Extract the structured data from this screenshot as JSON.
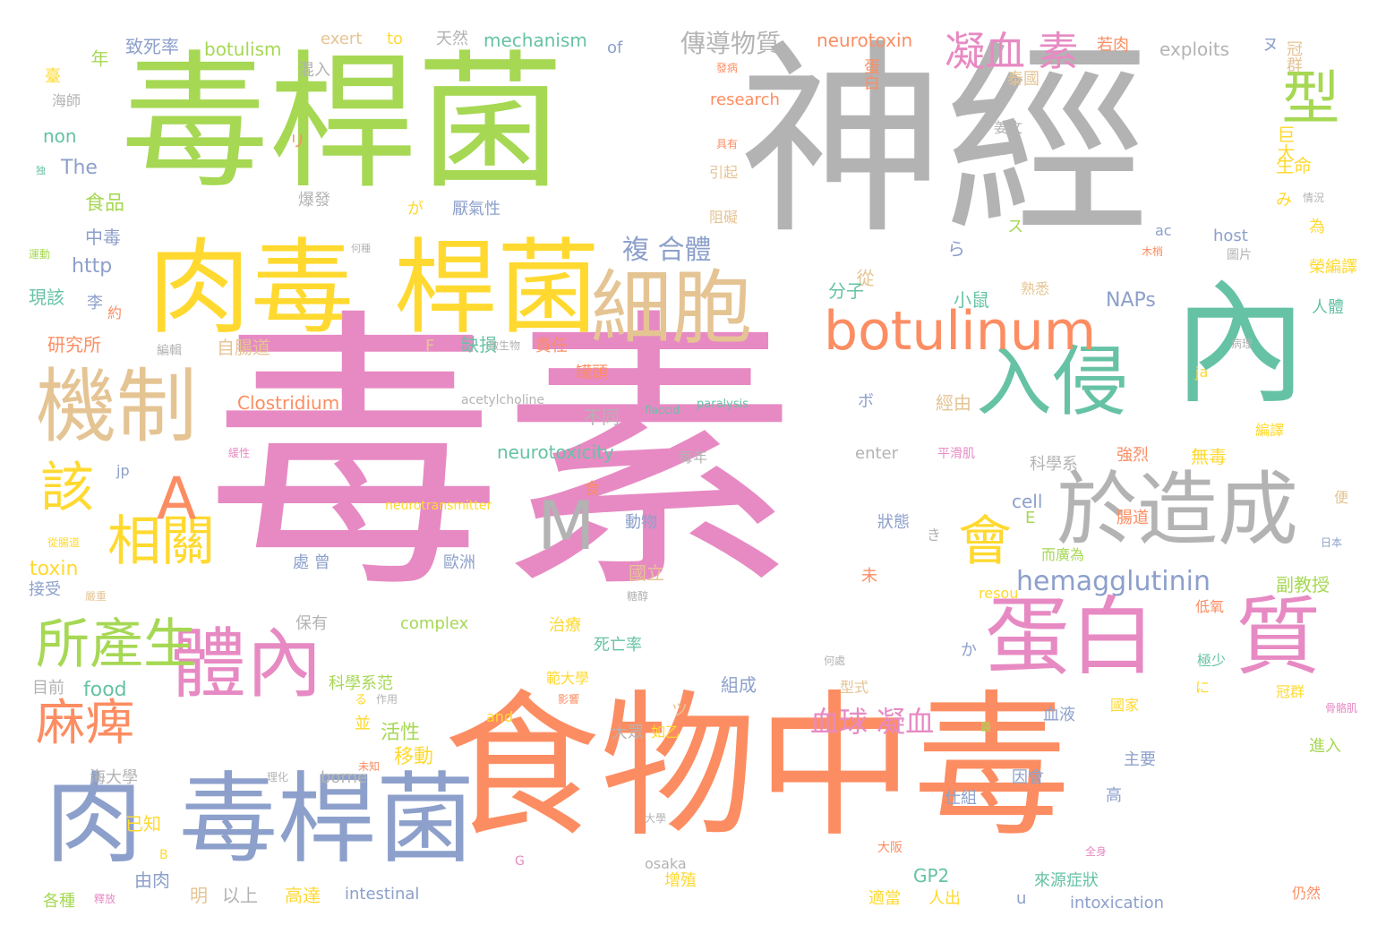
{
  "colors": {
    "green": "#a6d854",
    "gray": "#b3b3b3",
    "pink": "#e78ac3",
    "orange": "#fc8d62",
    "yellow": "#ffd92f",
    "tan": "#e5c494",
    "teal": "#66c2a5",
    "blue": "#8da0cb"
  },
  "words": [
    {
      "text": "毒素",
      "color": "pink"
    },
    {
      "text": "神經",
      "color": "gray"
    },
    {
      "text": "毒桿菌",
      "color": "green"
    },
    {
      "text": "食物中毒",
      "color": "orange"
    },
    {
      "text": "內",
      "color": "teal"
    },
    {
      "text": "肉毒",
      "color": "yellow"
    },
    {
      "text": "桿菌",
      "color": "yellow"
    },
    {
      "text": "肉",
      "color": "blue"
    },
    {
      "text": "毒桿菌",
      "color": "blue"
    },
    {
      "text": "機制",
      "color": "tan"
    },
    {
      "text": "細胞",
      "color": "tan"
    },
    {
      "text": "蛋白",
      "color": "pink"
    },
    {
      "text": "質",
      "color": "pink"
    },
    {
      "text": "體內",
      "color": "pink"
    },
    {
      "text": "於造成",
      "color": "gray"
    },
    {
      "text": "入侵",
      "color": "teal"
    },
    {
      "text": "botulinum",
      "color": "orange"
    },
    {
      "text": "所產生",
      "color": "green"
    },
    {
      "text": "麻痺",
      "color": "orange"
    },
    {
      "text": "相關",
      "color": "yellow"
    },
    {
      "text": "該",
      "color": "yellow"
    },
    {
      "text": "A",
      "color": "orange"
    },
    {
      "text": "M",
      "color": "gray"
    },
    {
      "text": "會",
      "color": "yellow"
    },
    {
      "text": "型",
      "color": "green"
    },
    {
      "text": "凝血 素",
      "color": "pink"
    },
    {
      "text": "hemagglutinin",
      "color": "blue"
    },
    {
      "text": "複 合體",
      "color": "blue"
    },
    {
      "text": "血球 凝血",
      "color": "pink"
    },
    {
      "text": "傳導物質",
      "color": "gray"
    },
    {
      "text": "neurotoxin",
      "color": "orange"
    },
    {
      "text": "mechanism",
      "color": "teal"
    },
    {
      "text": "exploits",
      "color": "gray"
    },
    {
      "text": "botulism",
      "color": "green"
    },
    {
      "text": "exert",
      "color": "tan"
    },
    {
      "text": "to",
      "color": "yellow"
    },
    {
      "text": "天然",
      "color": "gray"
    },
    {
      "text": "of",
      "color": "blue"
    },
    {
      "text": "致死率",
      "color": "blue"
    },
    {
      "text": "年",
      "color": "green"
    },
    {
      "text": "若肉",
      "color": "orange"
    },
    {
      "text": "冠群",
      "color": "tan"
    },
    {
      "text": "ヌ",
      "color": "blue"
    },
    {
      "text": "混入",
      "color": "gray"
    },
    {
      "text": "蛋白",
      "color": "orange"
    },
    {
      "text": "發病",
      "color": "orange"
    },
    {
      "text": "泰國",
      "color": "tan"
    },
    {
      "text": "research",
      "color": "orange"
    },
    {
      "text": "姜文",
      "color": "gray"
    },
    {
      "text": "海師",
      "color": "gray"
    },
    {
      "text": "臺",
      "color": "yellow"
    },
    {
      "text": "non",
      "color": "teal"
    },
    {
      "text": "The",
      "color": "blue"
    },
    {
      "text": "独",
      "color": "teal"
    },
    {
      "text": "食品",
      "color": "green"
    },
    {
      "text": "リ",
      "color": "orange"
    },
    {
      "text": "具有",
      "color": "orange"
    },
    {
      "text": "引起",
      "color": "tan"
    },
    {
      "text": "巨大",
      "color": "yellow"
    },
    {
      "text": "生命",
      "color": "yellow"
    },
    {
      "text": "爆發",
      "color": "gray"
    },
    {
      "text": "が",
      "color": "yellow"
    },
    {
      "text": "厭氣性",
      "color": "blue"
    },
    {
      "text": "阻礙",
      "color": "tan"
    },
    {
      "text": "み",
      "color": "yellow"
    },
    {
      "text": "情況",
      "color": "gray"
    },
    {
      "text": "為",
      "color": "yellow"
    },
    {
      "text": "中毒",
      "color": "blue"
    },
    {
      "text": "http",
      "color": "blue"
    },
    {
      "text": "運動",
      "color": "green"
    },
    {
      "text": "何種",
      "color": "gray"
    },
    {
      "text": "ス",
      "color": "green"
    },
    {
      "text": "ac",
      "color": "blue"
    },
    {
      "text": "host",
      "color": "blue"
    },
    {
      "text": "木梢",
      "color": "orange"
    },
    {
      "text": "圖片",
      "color": "gray"
    },
    {
      "text": "榮編譯",
      "color": "yellow"
    },
    {
      "text": "ら",
      "color": "blue"
    },
    {
      "text": "從",
      "color": "tan"
    },
    {
      "text": "分子",
      "color": "teal"
    },
    {
      "text": "小鼠",
      "color": "teal"
    },
    {
      "text": "現該",
      "color": "teal"
    },
    {
      "text": "李",
      "color": "blue"
    },
    {
      "text": "約",
      "color": "orange"
    },
    {
      "text": "熟悉",
      "color": "tan"
    },
    {
      "text": "NAPs",
      "color": "blue"
    },
    {
      "text": "人體",
      "color": "teal"
    },
    {
      "text": "研究所",
      "color": "orange"
    },
    {
      "text": "自腸道",
      "color": "tan"
    },
    {
      "text": "缺損",
      "color": "teal"
    },
    {
      "text": "責任",
      "color": "orange"
    },
    {
      "text": "微生物",
      "color": "gray"
    },
    {
      "text": "病理",
      "color": "gray"
    },
    {
      "text": "編輯",
      "color": "gray"
    },
    {
      "text": "F",
      "color": "tan"
    },
    {
      "text": "罐頭",
      "color": "orange"
    },
    {
      "text": "ja",
      "color": "yellow"
    },
    {
      "text": "Clostridium",
      "color": "orange"
    },
    {
      "text": "acetylcholine",
      "color": "gray"
    },
    {
      "text": "flaccid",
      "color": "teal"
    },
    {
      "text": "paralysis",
      "color": "teal"
    },
    {
      "text": "經由",
      "color": "tan"
    },
    {
      "text": "ボ",
      "color": "blue"
    },
    {
      "text": "不同",
      "color": "gray"
    },
    {
      "text": "neurotoxicity",
      "color": "teal"
    },
    {
      "text": "每年",
      "color": "gray"
    },
    {
      "text": "enter",
      "color": "gray"
    },
    {
      "text": "平滑肌",
      "color": "pink"
    },
    {
      "text": "強烈",
      "color": "orange"
    },
    {
      "text": "無毒",
      "color": "yellow"
    },
    {
      "text": "科學系",
      "color": "gray"
    },
    {
      "text": "編譯",
      "color": "yellow"
    },
    {
      "text": "緩性",
      "color": "pink"
    },
    {
      "text": "jp",
      "color": "blue"
    },
    {
      "text": "食",
      "color": "orange"
    },
    {
      "text": "cell",
      "color": "blue"
    },
    {
      "text": "neurotransmitter",
      "color": "yellow"
    },
    {
      "text": "動物",
      "color": "blue"
    },
    {
      "text": "狀態",
      "color": "blue"
    },
    {
      "text": "E",
      "color": "green"
    },
    {
      "text": "き",
      "color": "gray"
    },
    {
      "text": "腸道",
      "color": "orange"
    },
    {
      "text": "便",
      "color": "tan"
    },
    {
      "text": "從腸道",
      "color": "yellow"
    },
    {
      "text": "toxin",
      "color": "yellow"
    },
    {
      "text": "處 曾",
      "color": "blue"
    },
    {
      "text": "歐洲",
      "color": "blue"
    },
    {
      "text": "國立",
      "color": "tan"
    },
    {
      "text": "糖醇",
      "color": "gray"
    },
    {
      "text": "而廣為",
      "color": "green"
    },
    {
      "text": "日本",
      "color": "blue"
    },
    {
      "text": "接受",
      "color": "blue"
    },
    {
      "text": "嚴重",
      "color": "tan"
    },
    {
      "text": "未",
      "color": "orange"
    },
    {
      "text": "resou",
      "color": "yellow"
    },
    {
      "text": "副教授",
      "color": "green"
    },
    {
      "text": "保有",
      "color": "gray"
    },
    {
      "text": "complex",
      "color": "green"
    },
    {
      "text": "治療",
      "color": "yellow"
    },
    {
      "text": "低氧",
      "color": "orange"
    },
    {
      "text": "死亡率",
      "color": "teal"
    },
    {
      "text": "か",
      "color": "blue"
    },
    {
      "text": "何處",
      "color": "gray"
    },
    {
      "text": "極少",
      "color": "teal"
    },
    {
      "text": "科學系范",
      "color": "green"
    },
    {
      "text": "組成",
      "color": "blue"
    },
    {
      "text": "目前",
      "color": "gray"
    },
    {
      "text": "food",
      "color": "teal"
    },
    {
      "text": "る",
      "color": "yellow"
    },
    {
      "text": "作用",
      "color": "gray"
    },
    {
      "text": "範大學",
      "color": "yellow"
    },
    {
      "text": "影響",
      "color": "orange"
    },
    {
      "text": "型式",
      "color": "tan"
    },
    {
      "text": "に",
      "color": "yellow"
    },
    {
      "text": "冠群",
      "color": "yellow"
    },
    {
      "text": "and",
      "color": "yellow"
    },
    {
      "text": "ツ",
      "color": "tan"
    },
    {
      "text": "國家",
      "color": "yellow"
    },
    {
      "text": "骨骼肌",
      "color": "pink"
    },
    {
      "text": "並",
      "color": "yellow"
    },
    {
      "text": "活性",
      "color": "green"
    },
    {
      "text": "移動",
      "color": "yellow"
    },
    {
      "text": "大眾",
      "color": "gray"
    },
    {
      "text": "如乙",
      "color": "yellow"
    },
    {
      "text": "血液",
      "color": "blue"
    },
    {
      "text": "醫",
      "color": "green"
    },
    {
      "text": "主要",
      "color": "blue"
    },
    {
      "text": "進入",
      "color": "green"
    },
    {
      "text": "未知",
      "color": "orange"
    },
    {
      "text": "海大學",
      "color": "gray"
    },
    {
      "text": "理化",
      "color": "gray"
    },
    {
      "text": "borne",
      "color": "gray"
    },
    {
      "text": "人",
      "color": "orange"
    },
    {
      "text": "仕組",
      "color": "blue"
    },
    {
      "text": "因會",
      "color": "blue"
    },
    {
      "text": "高",
      "color": "blue"
    },
    {
      "text": "已知",
      "color": "yellow"
    },
    {
      "text": "B",
      "color": "yellow"
    },
    {
      "text": "G",
      "color": "pink"
    },
    {
      "text": "大學",
      "color": "gray"
    },
    {
      "text": "osaka",
      "color": "gray"
    },
    {
      "text": "大阪",
      "color": "orange"
    },
    {
      "text": "全身",
      "color": "pink"
    },
    {
      "text": "由肉",
      "color": "blue"
    },
    {
      "text": "增殖",
      "color": "yellow"
    },
    {
      "text": "GP2",
      "color": "teal"
    },
    {
      "text": "來源症狀",
      "color": "teal"
    },
    {
      "text": "明",
      "color": "tan"
    },
    {
      "text": "以上",
      "color": "gray"
    },
    {
      "text": "高達",
      "color": "yellow"
    },
    {
      "text": "intestinal",
      "color": "blue"
    },
    {
      "text": "適當",
      "color": "yellow"
    },
    {
      "text": "人出",
      "color": "yellow"
    },
    {
      "text": "u",
      "color": "blue"
    },
    {
      "text": "intoxication",
      "color": "blue"
    },
    {
      "text": "仍然",
      "color": "orange"
    },
    {
      "text": "各種",
      "color": "green"
    },
    {
      "text": "釋放",
      "color": "pink"
    }
  ]
}
